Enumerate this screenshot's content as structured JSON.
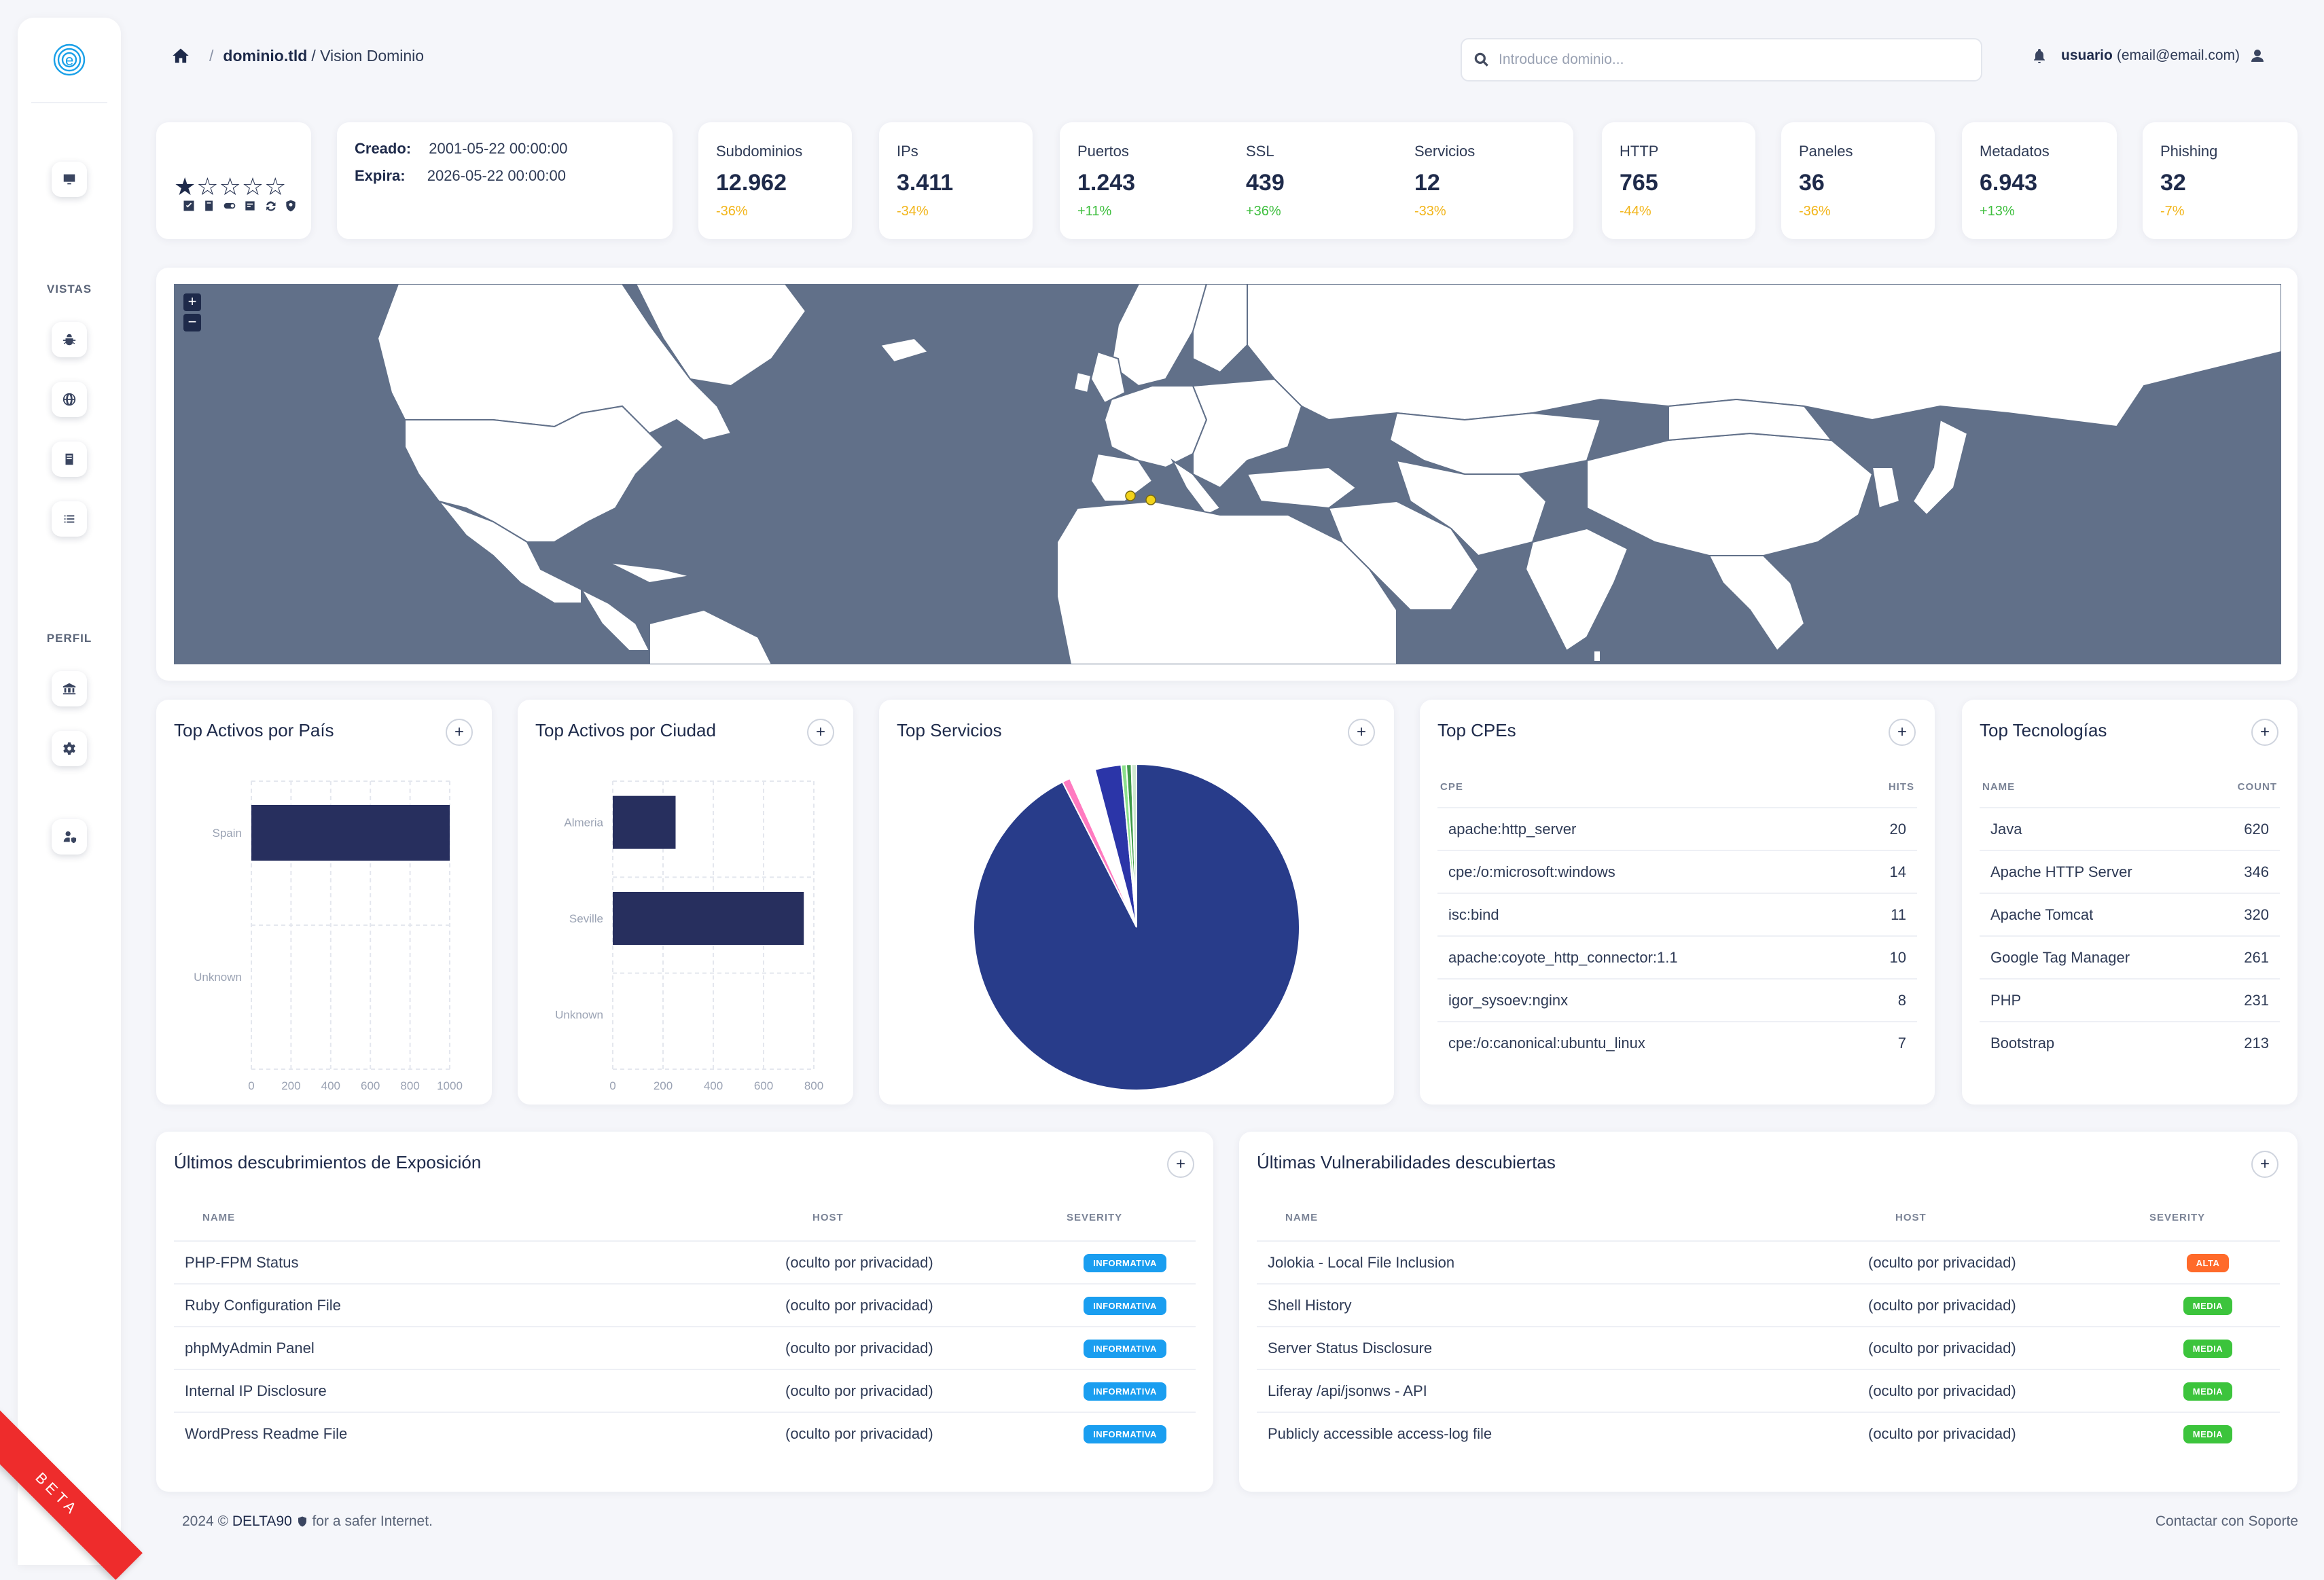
{
  "breadcrumb": {
    "domain": "dominio.tld",
    "separator": "/",
    "page": "/ Vision Dominio"
  },
  "search": {
    "placeholder": "Introduce dominio..."
  },
  "user": {
    "name": "usuario",
    "email": "(email@email.com)"
  },
  "sidebar": {
    "section_views": "VISTAS",
    "section_profile": "PERFIL",
    "beta": "BETA"
  },
  "rating": {
    "stars": "★☆☆☆☆",
    "value": 1,
    "max": 5
  },
  "domain_dates": {
    "created_label": "Creado:",
    "created": "2001-05-22 00:00:00",
    "expires_label": "Expira:",
    "expires": "2026-05-22 00:00:00"
  },
  "stats": [
    {
      "label": "Subdominios",
      "value": "12.962",
      "delta": "-36%"
    },
    {
      "label": "IPs",
      "value": "3.411",
      "delta": "-34%"
    },
    {
      "label": "Puertos",
      "value": "1.243",
      "delta": "+11%"
    },
    {
      "label": "SSL",
      "value": "439",
      "delta": "+36%"
    },
    {
      "label": "Servicios",
      "value": "12",
      "delta": "-33%"
    },
    {
      "label": "HTTP",
      "value": "765",
      "delta": "-44%"
    },
    {
      "label": "Paneles",
      "value": "36",
      "delta": "-36%"
    },
    {
      "label": "Metadatos",
      "value": "6.943",
      "delta": "+13%"
    },
    {
      "label": "Phishing",
      "value": "32",
      "delta": "-7%"
    }
  ],
  "map": {
    "zoom_in": "+",
    "zoom_out": "−"
  },
  "cards": {
    "country": "Top Activos por País",
    "city": "Top Activos por Ciudad",
    "services": "Top Servicios",
    "cpes": "Top CPEs",
    "tech": "Top Tecnologías",
    "exposure": "Últimos descubrimientos de Exposición",
    "vulns": "Últimas Vulnerabilidades descubiertas",
    "plus": "+"
  },
  "chart_data": [
    {
      "type": "bar",
      "orientation": "horizontal",
      "title": "Top Activos por País",
      "categories": [
        "Spain",
        "Unknown"
      ],
      "values": [
        1000,
        0
      ],
      "xticks": [
        "0",
        "200",
        "400",
        "600",
        "800",
        "1000"
      ],
      "xlim": [
        0,
        1000
      ],
      "grid": true
    },
    {
      "type": "bar",
      "orientation": "horizontal",
      "title": "Top Activos por Ciudad",
      "categories": [
        "Almeria",
        "Seville",
        "Unknown"
      ],
      "values": [
        250,
        760,
        0
      ],
      "xticks": [
        "0",
        "200",
        "400",
        "600",
        "800"
      ],
      "xlim": [
        0,
        800
      ],
      "grid": true
    },
    {
      "type": "pie",
      "title": "Top Servicios",
      "values": [
        92.5,
        0.8,
        2.6,
        2.6,
        0.5,
        0.5,
        0.5
      ],
      "colors": [
        "#283c8a",
        "#ff7ac0",
        "#ffffff",
        "#2b35a8",
        "#8ce08c",
        "#3f9a4a",
        "#cfe8cf"
      ]
    }
  ],
  "cpes": {
    "col1": "CPE",
    "col2": "HITS",
    "rows": [
      {
        "name": "apache:http_server",
        "hits": "20"
      },
      {
        "name": "cpe:/o:microsoft:windows",
        "hits": "14"
      },
      {
        "name": "isc:bind",
        "hits": "11"
      },
      {
        "name": "apache:coyote_http_connector:1.1",
        "hits": "10"
      },
      {
        "name": "igor_sysoev:nginx",
        "hits": "8"
      },
      {
        "name": "cpe:/o:canonical:ubuntu_linux",
        "hits": "7"
      }
    ]
  },
  "tech": {
    "col1": "NAME",
    "col2": "COUNT",
    "rows": [
      {
        "name": "Java",
        "count": "620"
      },
      {
        "name": "Apache HTTP Server",
        "count": "346"
      },
      {
        "name": "Apache Tomcat",
        "count": "320"
      },
      {
        "name": "Google Tag Manager",
        "count": "261"
      },
      {
        "name": "PHP",
        "count": "231"
      },
      {
        "name": "Bootstrap",
        "count": "213"
      }
    ]
  },
  "exposure": {
    "col1": "NAME",
    "col2": "HOST",
    "col3": "SEVERITY",
    "rows": [
      {
        "name": "PHP-FPM Status",
        "host": "(oculto por privacidad)",
        "severity": "INFORMATIVA"
      },
      {
        "name": "Ruby Configuration File",
        "host": "(oculto por privacidad)",
        "severity": "INFORMATIVA"
      },
      {
        "name": "phpMyAdmin Panel",
        "host": "(oculto por privacidad)",
        "severity": "INFORMATIVA"
      },
      {
        "name": "Internal IP Disclosure",
        "host": "(oculto por privacidad)",
        "severity": "INFORMATIVA"
      },
      {
        "name": "WordPress Readme File",
        "host": "(oculto por privacidad)",
        "severity": "INFORMATIVA"
      }
    ]
  },
  "vulns": {
    "col1": "NAME",
    "col2": "HOST",
    "col3": "SEVERITY",
    "rows": [
      {
        "name": "Jolokia - Local File Inclusion",
        "host": "(oculto por privacidad)",
        "severity": "ALTA"
      },
      {
        "name": "Shell History",
        "host": "(oculto por privacidad)",
        "severity": "MEDIA"
      },
      {
        "name": "Server Status Disclosure",
        "host": "(oculto por privacidad)",
        "severity": "MEDIA"
      },
      {
        "name": "Liferay /api/jsonws - API",
        "host": "(oculto por privacidad)",
        "severity": "MEDIA"
      },
      {
        "name": "Publicly accessible access-log file",
        "host": "(oculto por privacidad)",
        "severity": "MEDIA"
      }
    ]
  },
  "footer": {
    "left": "2024 © ",
    "brand": "DELTA90",
    "tagline": " for a safer Internet.",
    "right": "Contactar con Soporte"
  },
  "colors": {
    "map_sea": "#617089",
    "bar": "#272f5e",
    "pie_main": "#283c8a",
    "badge_info": "#1a9ef0",
    "badge_alta": "#ff6a2a",
    "badge_media": "#3cc43c",
    "delta_neg": "#f2b51a",
    "delta_pos": "#3fbf3f",
    "ribbon": "#ee2c2c"
  }
}
